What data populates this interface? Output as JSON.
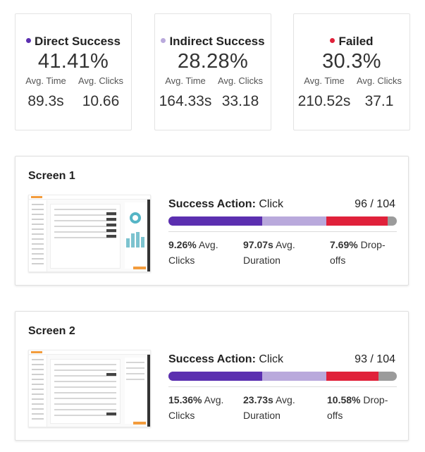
{
  "summary": [
    {
      "title": "Direct Success",
      "color": "#5b2fb0",
      "percent": "41.41%",
      "time_label": "Avg. Time",
      "clicks_label": "Avg. Clicks",
      "time": "89.3s",
      "clicks": "10.66"
    },
    {
      "title": "Indirect Success",
      "color": "#b9a9dc",
      "percent": "28.28%",
      "time_label": "Avg. Time",
      "clicks_label": "Avg. Clicks",
      "time": "164.33s",
      "clicks": "33.18"
    },
    {
      "title": "Failed",
      "color": "#e0213a",
      "percent": "30.3%",
      "time_label": "Avg. Time",
      "clicks_label": "Avg. Clicks",
      "time": "210.52s",
      "clicks": "37.1"
    }
  ],
  "colors": {
    "direct": "#5b2fb0",
    "indirect": "#b9a9dc",
    "failed": "#e0213a",
    "remaining": "#9b9b9b"
  },
  "screens": [
    {
      "title": "Screen 1",
      "action_label": "Success Action:",
      "action": "Click",
      "count": "96 / 104",
      "progress": {
        "direct": 0.41,
        "indirect": 0.28,
        "failed": 0.27
      },
      "stats": [
        {
          "value": "9.26%",
          "label": "Avg. Clicks"
        },
        {
          "value": "97.07s",
          "label": "Avg. Duration"
        },
        {
          "value": "7.69%",
          "label": "Drop-offs"
        }
      ]
    },
    {
      "title": "Screen 2",
      "action_label": "Success Action:",
      "action": "Click",
      "count": "93 / 104",
      "progress": {
        "direct": 0.41,
        "indirect": 0.28,
        "failed": 0.23
      },
      "stats": [
        {
          "value": "15.36%",
          "label": "Avg. Clicks"
        },
        {
          "value": "23.73s",
          "label": "Avg. Duration"
        },
        {
          "value": "10.58%",
          "label": "Drop-offs"
        }
      ]
    }
  ]
}
